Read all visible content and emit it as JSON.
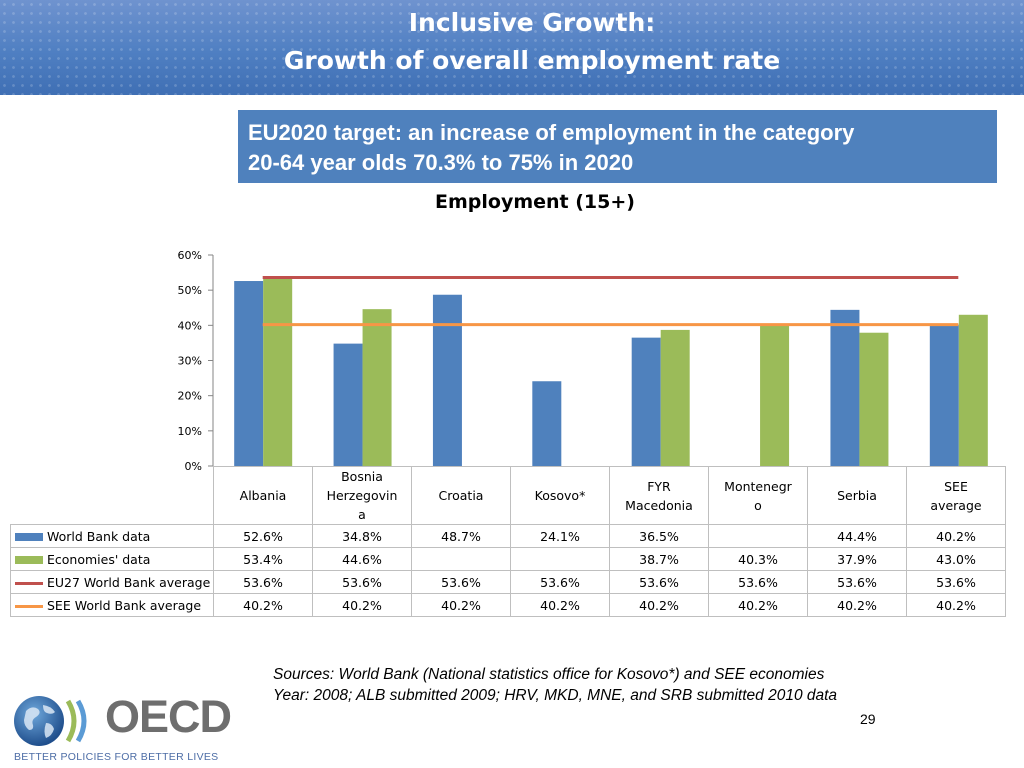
{
  "header": {
    "title_line1": "Inclusive Growth:",
    "title_line2": "Growth of overall employment rate"
  },
  "target_box": {
    "line1": "EU2020 target: an increase of employment in the category",
    "line2": "20-64 year olds 70.3% to 75% in 2020"
  },
  "chart_data": {
    "type": "bar",
    "title": "Employment (15+)",
    "categories": [
      [
        "Albania"
      ],
      [
        "Bosnia",
        "Herzegovin",
        "a"
      ],
      [
        "Croatia"
      ],
      [
        "Kosovo*"
      ],
      [
        "FYR",
        "Macedonia"
      ],
      [
        "Montenegr",
        "o"
      ],
      [
        "Serbia"
      ],
      [
        "SEE",
        "average"
      ]
    ],
    "ylim": [
      0,
      60
    ],
    "yticks": [
      0,
      10,
      20,
      30,
      40,
      50,
      60
    ],
    "ytick_labels": [
      "0%",
      "10%",
      "20%",
      "30%",
      "40%",
      "50%",
      "60%"
    ],
    "series": [
      {
        "name": "World Bank data",
        "kind": "bar",
        "color": "#4f81bd",
        "values": [
          52.6,
          34.8,
          48.7,
          24.1,
          36.5,
          null,
          44.4,
          40.2
        ],
        "labels": [
          "52.6%",
          "34.8%",
          "48.7%",
          "24.1%",
          "36.5%",
          "",
          "44.4%",
          "40.2%"
        ]
      },
      {
        "name": "Economies' data",
        "kind": "bar",
        "color": "#9bbb59",
        "values": [
          53.4,
          44.6,
          null,
          null,
          38.7,
          40.3,
          37.9,
          43.0
        ],
        "labels": [
          "53.4%",
          "44.6%",
          "",
          "",
          "38.7%",
          "40.3%",
          "37.9%",
          "43.0%"
        ]
      },
      {
        "name": "EU27 World Bank average",
        "kind": "line",
        "color": "#c0504d",
        "values": [
          53.6,
          53.6,
          53.6,
          53.6,
          53.6,
          53.6,
          53.6,
          53.6
        ],
        "labels": [
          "53.6%",
          "53.6%",
          "53.6%",
          "53.6%",
          "53.6%",
          "53.6%",
          "53.6%",
          "53.6%"
        ]
      },
      {
        "name": "SEE World Bank average",
        "kind": "line",
        "color": "#f79646",
        "values": [
          40.2,
          40.2,
          40.2,
          40.2,
          40.2,
          40.2,
          40.2,
          40.2
        ],
        "labels": [
          "40.2%",
          "40.2%",
          "40.2%",
          "40.2%",
          "40.2%",
          "40.2%",
          "40.2%",
          "40.2%"
        ]
      }
    ]
  },
  "sources": {
    "line1": "Sources: World Bank (National statistics office for Kosovo*) and SEE economies",
    "line2": "Year: 2008; ALB submitted 2009; HRV, MKD, MNE, and SRB submitted 2010 data"
  },
  "page_number": "29",
  "logo": {
    "wordmark": "OECD",
    "tagline": "BETTER POLICIES FOR BETTER LIVES"
  }
}
